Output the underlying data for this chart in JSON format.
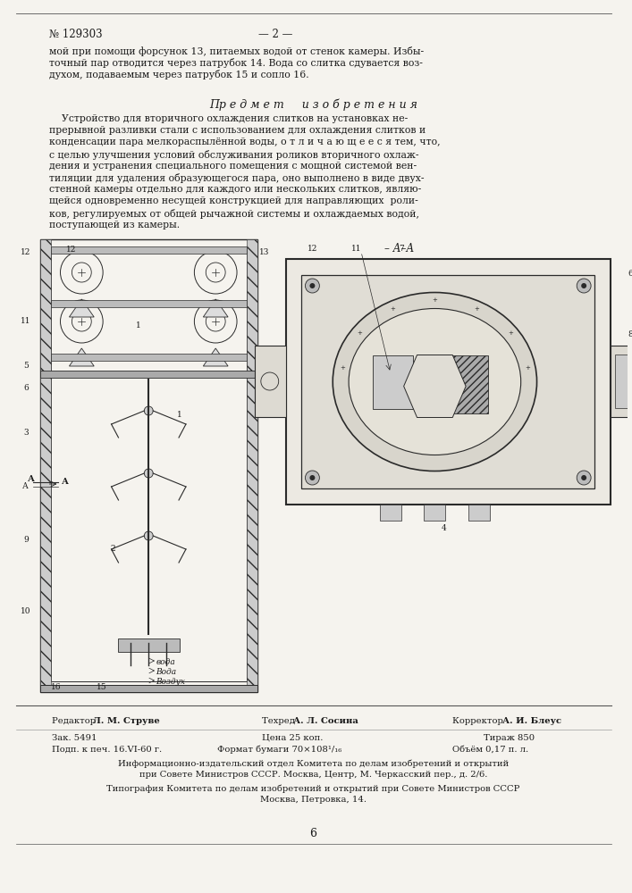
{
  "bg_color": "#f5f3ee",
  "text_color": "#1a1a1a",
  "draw_color": "#2a2a2a",
  "page_number": "№ 129303",
  "page_subtitle": "— 2 —",
  "body_lines": [
    "мой при помощи форсунок 13, питаемых водой от стенок камеры. Избы-",
    "точный пар отводится через патрубок 14. Вода со слитка сдувается воз-",
    "духом, подаваемым через патрубок 15 и сопло 16."
  ],
  "section_title": "Пр е д м е т     и з о б р е т е н и я",
  "patent_text": [
    "    Устройство для вторичного охлаждения слитков на установках не-",
    "прерывной разливки стали с использованием для охлаждения слитков и",
    "конденсации пара мелкораспылённой воды, о т л и ч а ю щ е е с я тем, что,",
    "с целью улучшения условий обслуживания роликов вторичного охлаж-",
    "дения и устранения специального помещения с мощной системой вен-",
    "тиляции для удаления образующегося пара, оно выполнено в виде двух-",
    "стенной камеры отдельно для каждого или нескольких слитков, являю-",
    "щейся одновременно несущей конструкцией для направляющих  роли-",
    "ков, регулируемых от общей рычажной системы и охлаждаемых водой,",
    "поступающей из камеры."
  ],
  "footer_editor": "Редактор Л. М. Струве",
  "footer_tech": "Техред А. Л. Сосина",
  "footer_corrector": "Корректор А. И. Блеус",
  "footer_zak": "Зак. 5491",
  "footer_price": "Цена 25 коп.",
  "footer_tirazh": "Тираж 850",
  "footer_podp": "Подп. к печ. 16.VI-60 г.",
  "footer_format": "Формат бумаги 70×108¹/₁₆",
  "footer_obem": "Объём 0,17 п. л.",
  "footer_info1": "Информационно-издательский отдел Комитета по делам изобретений и открытий",
  "footer_info2": "при Совете Министров СССР. Москва, Центр, М. Черкасский пер., д. 2/6.",
  "footer_tip1": "Типография Комитета по делам изобретений и открытий при Совете Министров СССР",
  "footer_tip2": "Москва, Петровка, 14.",
  "page_num_bottom": "6"
}
